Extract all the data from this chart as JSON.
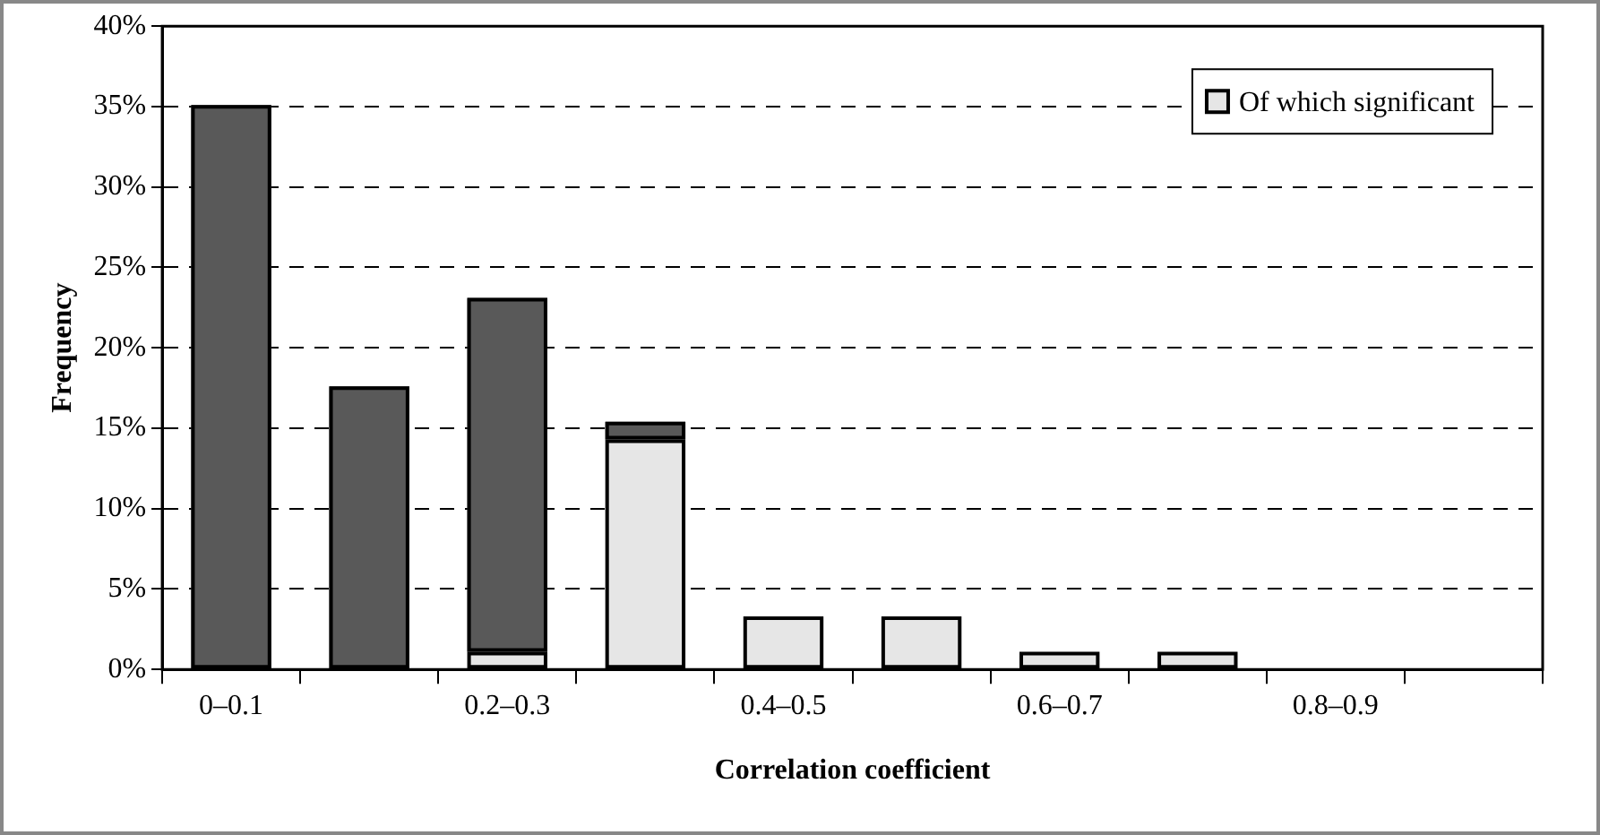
{
  "chart_data": {
    "type": "bar",
    "stacked": true,
    "xlabel": "Correlation coefficient",
    "ylabel": "Frequency",
    "categories": [
      "0–0.1",
      null,
      "0.2–0.3",
      null,
      "0.4–0.5",
      null,
      "0.6–0.7",
      null,
      "0.8–0.9",
      null
    ],
    "series": [
      {
        "name": "Of which significant",
        "color": "#e6e6e6",
        "values": [
          0,
          0,
          1.1,
          14.3,
          3.3,
          3.3,
          1.1,
          1.1,
          0,
          0
        ]
      },
      {
        "color": "#595959",
        "values": [
          35.1,
          17.6,
          22.0,
          1.1,
          0,
          0,
          0,
          0,
          0,
          0
        ]
      }
    ],
    "ylim": [
      0,
      40
    ],
    "yticks": [
      {
        "value": 0,
        "label": "0%"
      },
      {
        "value": 5,
        "label": "5%"
      },
      {
        "value": 10,
        "label": "10%"
      },
      {
        "value": 15,
        "label": "15%"
      },
      {
        "value": 20,
        "label": "20%"
      },
      {
        "value": 25,
        "label": "25%"
      },
      {
        "value": 30,
        "label": "30%"
      },
      {
        "value": 35,
        "label": "35%"
      },
      {
        "value": 40,
        "label": "40%"
      }
    ],
    "grid": "y",
    "legend": "top right"
  }
}
